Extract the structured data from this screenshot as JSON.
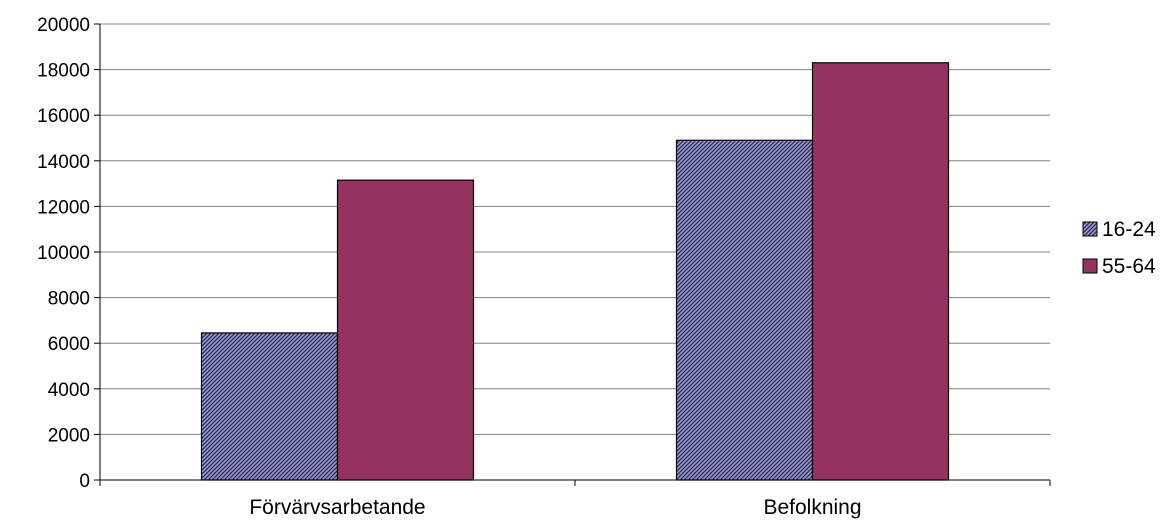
{
  "chart_data": {
    "type": "bar",
    "categories": [
      "Förvärvsarbetande",
      "Befolkning"
    ],
    "series": [
      {
        "name": "16-24",
        "values": [
          6450,
          14900
        ],
        "color": "#7f7fb8",
        "pattern": "diagonal-hatch"
      },
      {
        "name": "55-64",
        "values": [
          13150,
          18300
        ],
        "color": "#943360",
        "pattern": "solid"
      }
    ],
    "ylim": [
      0,
      20000
    ],
    "yticks": [
      "0",
      "2000",
      "4000",
      "6000",
      "8000",
      "10000",
      "12000",
      "14000",
      "16000",
      "18000",
      "20000"
    ],
    "grid": true,
    "legend_position": "right"
  }
}
